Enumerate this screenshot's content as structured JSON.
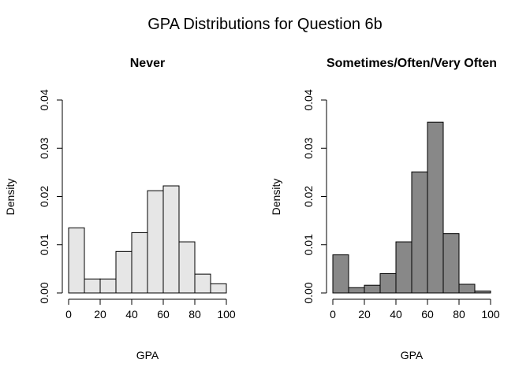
{
  "title": "GPA Distributions for Question 6b",
  "colors": {
    "never_fill": "#e6e6e6",
    "sometimes_fill": "#888888",
    "stroke": "#000000"
  },
  "chart_data": [
    {
      "type": "bar",
      "title": "Never",
      "xlabel": "GPA",
      "ylabel": "Density",
      "bin_edges": [
        0,
        10,
        20,
        30,
        40,
        50,
        60,
        70,
        80,
        90,
        100
      ],
      "values": [
        0.0135,
        0.0029,
        0.0029,
        0.0086,
        0.0125,
        0.0212,
        0.0222,
        0.0106,
        0.0039,
        0.0019
      ],
      "xlim": [
        0,
        100
      ],
      "ylim": [
        0,
        0.04
      ],
      "xticks": [
        "0",
        "20",
        "40",
        "60",
        "80",
        "100"
      ],
      "xtick_values": [
        0,
        20,
        40,
        60,
        80,
        100
      ],
      "yticks": [
        "0.00",
        "0.01",
        "0.02",
        "0.03",
        "0.04"
      ],
      "ytick_values": [
        0,
        0.01,
        0.02,
        0.03,
        0.04
      ],
      "fill": "#e6e6e6"
    },
    {
      "type": "bar",
      "title": "Sometimes/Often/Very Often",
      "xlabel": "GPA",
      "ylabel": "Density",
      "bin_edges": [
        0,
        10,
        20,
        30,
        40,
        50,
        60,
        70,
        80,
        90,
        100
      ],
      "values": [
        0.0079,
        0.0011,
        0.0016,
        0.004,
        0.0106,
        0.0251,
        0.0354,
        0.0123,
        0.0018,
        0.0004
      ],
      "xlim": [
        0,
        100
      ],
      "ylim": [
        0,
        0.04
      ],
      "xticks": [
        "0",
        "20",
        "40",
        "60",
        "80",
        "100"
      ],
      "xtick_values": [
        0,
        20,
        40,
        60,
        80,
        100
      ],
      "yticks": [
        "0.00",
        "0.01",
        "0.02",
        "0.03",
        "0.04"
      ],
      "ytick_values": [
        0,
        0.01,
        0.02,
        0.03,
        0.04
      ],
      "fill": "#888888"
    }
  ]
}
